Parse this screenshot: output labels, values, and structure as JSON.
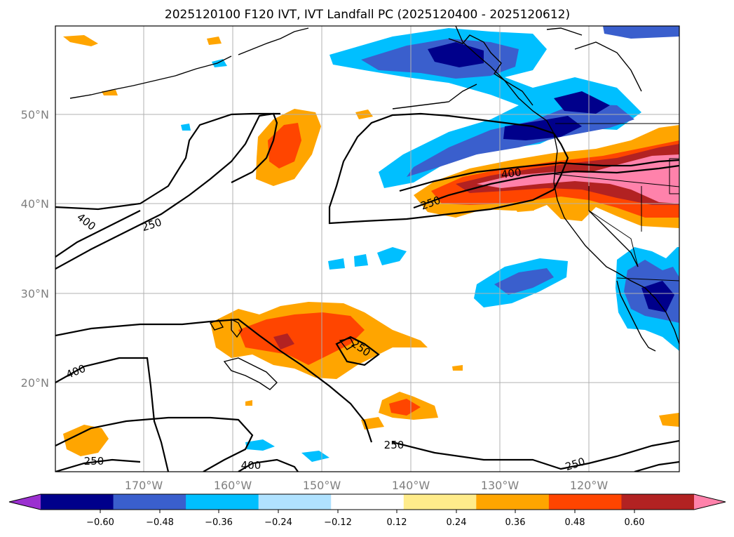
{
  "figure": {
    "title": "2025120100 F120 IVT, IVT Landfall PC (2025120400 - 2025120612)"
  },
  "map": {
    "projection": "equirectangular",
    "extent": {
      "lon_min": -180,
      "lon_max": -110,
      "lat_min": 10,
      "lat_max": 60
    },
    "gridlines": true,
    "lat_labels": [
      "20°N",
      "30°N",
      "40°N",
      "50°N"
    ],
    "lon_labels": [
      "170°W",
      "160°W",
      "150°W",
      "140°W",
      "130°W",
      "120°W"
    ],
    "ivt_contour_labels": [
      "250",
      "400",
      "400",
      "250",
      "400",
      "250",
      "400",
      "250",
      "250",
      "250"
    ]
  },
  "colorbar": {
    "ticks": [
      "−0.60",
      "−0.48",
      "−0.36",
      "−0.24",
      "−0.12",
      "0.12",
      "0.24",
      "0.36",
      "0.48",
      "0.60"
    ],
    "colors": [
      "#9b30d0",
      "#00008b",
      "#3a5fcd",
      "#00bfff",
      "#b0e2ff",
      "#ffffff",
      "#ffec8b",
      "#ffa500",
      "#ff4500",
      "#b22222",
      "#ff82ab"
    ]
  }
}
